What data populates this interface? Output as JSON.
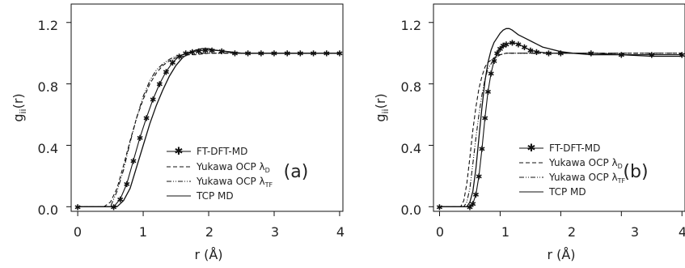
{
  "chart_data": [
    {
      "type": "line",
      "panel_label": "(a)",
      "xlabel": "r (Å)",
      "ylabel_main": "g",
      "ylabel_sub": "ii",
      "ylabel_tail": "(r)",
      "xlim": [
        -0.1,
        4.05
      ],
      "ylim": [
        -0.03,
        1.32
      ],
      "x_ticks": [
        0,
        1,
        2,
        3,
        4
      ],
      "x_tick_labels": [
        "0",
        "1",
        "2",
        "3",
        "4"
      ],
      "y_ticks": [
        0.0,
        0.4,
        0.8,
        1.2
      ],
      "y_tick_labels": [
        "0.0",
        "0.4",
        "0.8",
        "1.2"
      ],
      "grid": false,
      "legend_position": "lower-right",
      "series": [
        {
          "name": "FT-DFT-MD",
          "style": "solid-star",
          "x": [
            0.0,
            0.55,
            0.65,
            0.75,
            0.85,
            0.95,
            1.05,
            1.15,
            1.25,
            1.35,
            1.45,
            1.55,
            1.65,
            1.75,
            1.85,
            1.95,
            2.05,
            2.2,
            2.4,
            2.6,
            2.8,
            3.0,
            3.2,
            3.4,
            3.6,
            3.8,
            4.0
          ],
          "y": [
            0.0,
            0.0,
            0.05,
            0.15,
            0.3,
            0.45,
            0.58,
            0.7,
            0.8,
            0.88,
            0.94,
            0.98,
            1.0,
            1.01,
            1.015,
            1.02,
            1.02,
            1.015,
            1.0,
            1.0,
            1.0,
            1.0,
            1.0,
            1.0,
            1.0,
            1.0,
            1.0
          ]
        },
        {
          "name": "Yukawa OCP λ",
          "name_sub": "D",
          "style": "dashed",
          "x": [
            0.0,
            0.4,
            0.5,
            0.6,
            0.7,
            0.8,
            0.9,
            1.0,
            1.1,
            1.2,
            1.3,
            1.4,
            1.5,
            1.6,
            1.7,
            1.8,
            2.0,
            2.5,
            3.0,
            3.5,
            4.0
          ],
          "y": [
            0.0,
            0.0,
            0.03,
            0.12,
            0.27,
            0.43,
            0.58,
            0.7,
            0.8,
            0.87,
            0.92,
            0.95,
            0.97,
            0.98,
            0.99,
            0.99,
            1.0,
            1.0,
            1.0,
            1.0,
            1.0
          ]
        },
        {
          "name": "Yukawa OCP λ",
          "name_sub": "TF",
          "style": "dash-dot",
          "x": [
            0.0,
            0.5,
            0.6,
            0.7,
            0.8,
            0.9,
            1.0,
            1.1,
            1.2,
            1.3,
            1.4,
            1.5,
            1.6,
            1.7,
            1.8,
            2.0,
            2.5,
            3.0,
            3.5,
            4.0
          ],
          "y": [
            0.0,
            0.0,
            0.1,
            0.24,
            0.42,
            0.58,
            0.72,
            0.82,
            0.89,
            0.93,
            0.96,
            0.98,
            0.99,
            1.0,
            1.0,
            1.0,
            1.0,
            1.0,
            1.0,
            1.0
          ]
        },
        {
          "name": "TCP MD",
          "style": "solid",
          "x": [
            0.0,
            0.6,
            0.7,
            0.8,
            0.9,
            1.0,
            1.1,
            1.2,
            1.3,
            1.4,
            1.5,
            1.6,
            1.7,
            1.8,
            1.9,
            2.0,
            2.1,
            2.3,
            2.5,
            3.0,
            3.5,
            4.0
          ],
          "y": [
            0.0,
            0.0,
            0.04,
            0.12,
            0.26,
            0.4,
            0.54,
            0.66,
            0.76,
            0.85,
            0.92,
            0.97,
            1.0,
            1.02,
            1.03,
            1.03,
            1.02,
            1.01,
            1.0,
            1.0,
            1.0,
            1.0
          ]
        }
      ]
    },
    {
      "type": "line",
      "panel_label": "(b)",
      "xlabel": "r (Å)",
      "ylabel_main": "g",
      "ylabel_sub": "ii",
      "ylabel_tail": "(r)",
      "xlim": [
        -0.1,
        4.05
      ],
      "ylim": [
        -0.03,
        1.32
      ],
      "x_ticks": [
        0,
        1,
        2,
        3,
        4
      ],
      "x_tick_labels": [
        "0",
        "1",
        "2",
        "3",
        "4"
      ],
      "y_ticks": [
        0.0,
        0.4,
        0.8,
        1.2
      ],
      "y_tick_labels": [
        "0.0",
        "0.4",
        "0.8",
        "1.2"
      ],
      "grid": false,
      "legend_position": "lower-right",
      "series": [
        {
          "name": "FT-DFT-MD",
          "style": "solid-star",
          "x": [
            0.0,
            0.5,
            0.55,
            0.6,
            0.65,
            0.7,
            0.75,
            0.8,
            0.85,
            0.9,
            0.95,
            1.0,
            1.05,
            1.1,
            1.2,
            1.3,
            1.4,
            1.5,
            1.6,
            1.8,
            2.0,
            2.5,
            3.0,
            3.5,
            4.0
          ],
          "y": [
            0.0,
            0.0,
            0.02,
            0.08,
            0.2,
            0.38,
            0.58,
            0.75,
            0.87,
            0.95,
            1.0,
            1.03,
            1.05,
            1.06,
            1.07,
            1.06,
            1.04,
            1.02,
            1.01,
            1.0,
            1.0,
            1.0,
            0.99,
            0.99,
            0.99
          ]
        },
        {
          "name": "Yukawa OCP λ",
          "name_sub": "D",
          "style": "dashed",
          "x": [
            0.0,
            0.35,
            0.4,
            0.45,
            0.5,
            0.55,
            0.6,
            0.65,
            0.7,
            0.75,
            0.8,
            0.9,
            1.0,
            1.1,
            1.2,
            1.5,
            2.0,
            2.5,
            3.0,
            3.5,
            4.0
          ],
          "y": [
            0.0,
            0.0,
            0.04,
            0.15,
            0.32,
            0.5,
            0.65,
            0.77,
            0.85,
            0.91,
            0.94,
            0.97,
            0.99,
            1.0,
            1.0,
            1.0,
            1.0,
            1.0,
            1.0,
            1.0,
            1.0
          ]
        },
        {
          "name": "Yukawa OCP λ",
          "name_sub": "TF",
          "style": "dash-dot",
          "x": [
            0.0,
            0.4,
            0.45,
            0.5,
            0.55,
            0.6,
            0.65,
            0.7,
            0.75,
            0.8,
            0.9,
            1.0,
            1.1,
            1.2,
            1.5,
            2.0,
            2.5,
            3.0,
            3.5,
            4.0
          ],
          "y": [
            0.0,
            0.0,
            0.03,
            0.12,
            0.28,
            0.45,
            0.6,
            0.73,
            0.83,
            0.9,
            0.96,
            0.99,
            1.0,
            1.0,
            1.0,
            1.0,
            1.0,
            1.0,
            1.0,
            1.0
          ]
        },
        {
          "name": "TCP MD",
          "style": "solid",
          "x": [
            0.0,
            0.45,
            0.5,
            0.55,
            0.6,
            0.65,
            0.7,
            0.75,
            0.8,
            0.85,
            0.9,
            0.95,
            1.0,
            1.05,
            1.1,
            1.15,
            1.2,
            1.3,
            1.4,
            1.5,
            1.6,
            1.7,
            1.8,
            2.0,
            2.2,
            2.5,
            3.0,
            3.5,
            4.0
          ],
          "y": [
            0.0,
            0.0,
            0.03,
            0.1,
            0.25,
            0.45,
            0.65,
            0.82,
            0.94,
            1.02,
            1.07,
            1.1,
            1.13,
            1.15,
            1.16,
            1.16,
            1.15,
            1.12,
            1.1,
            1.08,
            1.06,
            1.04,
            1.03,
            1.01,
            1.0,
            0.99,
            0.99,
            0.98,
            0.98
          ]
        }
      ]
    }
  ]
}
